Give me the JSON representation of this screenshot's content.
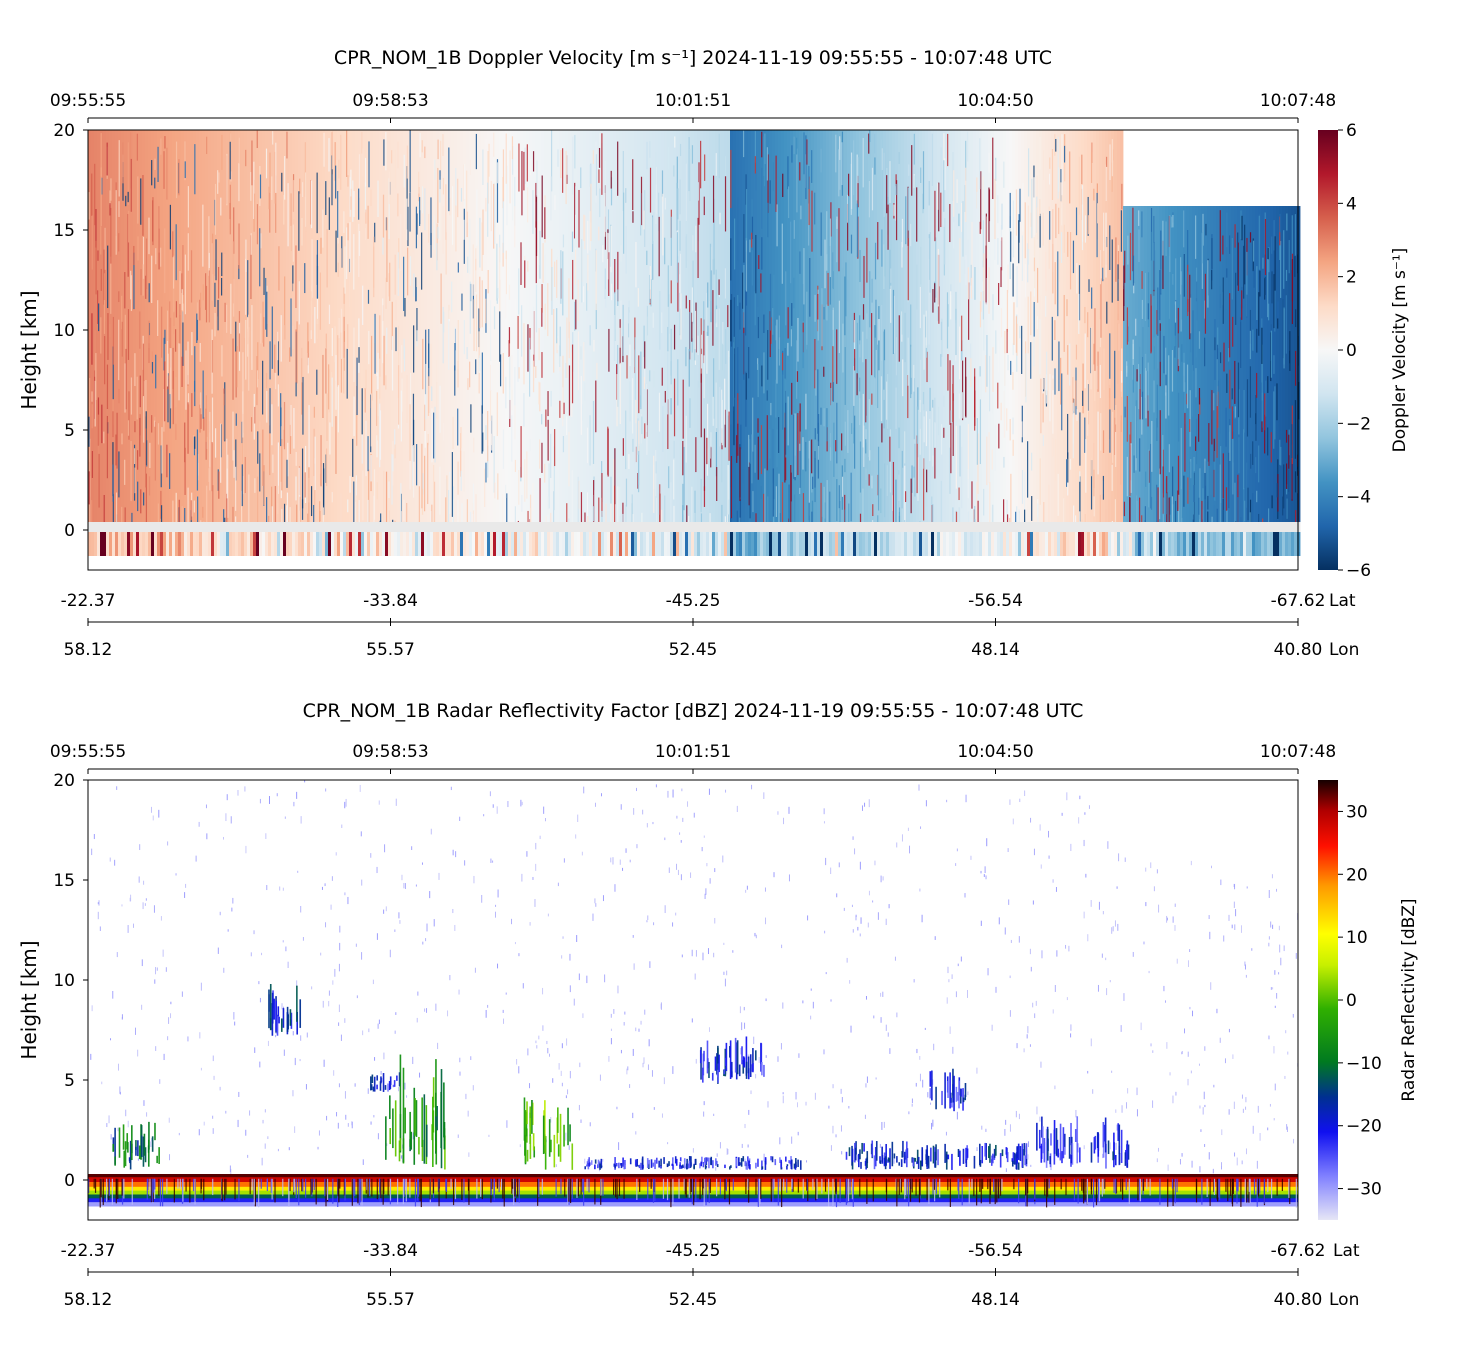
{
  "figure": {
    "panels": [
      {
        "title": "CPR_NOM_1B Doppler Velocity [m s⁻¹]    2024-11-19    09:55:55 - 10:07:48 UTC",
        "ylabel": "Height [km]",
        "colorbar_label": "Doppler Velocity [m s⁻¹]"
      },
      {
        "title": "CPR_NOM_1B Radar Reflectivity Factor [dBZ]    2024-11-19    09:55:55 - 10:07:48 UTC",
        "ylabel": "Height [km]",
        "colorbar_label": "Radar Reflectivity [dBZ]"
      }
    ]
  },
  "chart_data": [
    {
      "type": "heatmap",
      "title": "CPR_NOM_1B Doppler Velocity [m s^-1]    2024-11-19    09:55:55 - 10:07:48 UTC",
      "variable": "Doppler Velocity",
      "units": "m s^-1",
      "ylabel": "Height [km]",
      "ylim": [
        -2,
        20
      ],
      "yticks": [
        "0",
        "5",
        "10",
        "15",
        "20"
      ],
      "xlim_time": [
        "09:55:55",
        "10:07:48"
      ],
      "time_ticks": [
        "09:55:55",
        "09:58:53",
        "10:01:51",
        "10:04:50",
        "10:07:48"
      ],
      "lat_ticks": [
        "-22.37",
        "-33.84",
        "-45.25",
        "-56.54",
        "-67.62"
      ],
      "lon_ticks": [
        "58.12",
        "55.57",
        "52.45",
        "48.14",
        "40.80"
      ],
      "lat_label": "Lat",
      "lon_label": "Lon",
      "colorbar": {
        "min": -6,
        "max": 6,
        "ticks": [
          "−6",
          "−4",
          "−2",
          "0",
          "2",
          "4",
          "6"
        ],
        "label": "Doppler Velocity [m s^-1]",
        "colormap": "RdBu_r"
      },
      "segments": [
        {
          "t_start": 0.0,
          "t_end": 0.53,
          "top_km": 20,
          "v_start": 3.0,
          "v_end": -1.6
        },
        {
          "t_start": 0.53,
          "t_end": 0.853,
          "top_km": 20,
          "v_start": -4.5,
          "v_end": 1.8
        },
        {
          "t_start": 0.853,
          "t_end": 1.0,
          "top_km": 16.2,
          "v_start": -3.0,
          "v_end": -5.2
        }
      ],
      "surface_band_km": [
        -1.3,
        0.4
      ]
    },
    {
      "type": "heatmap",
      "title": "CPR_NOM_1B Radar Reflectivity Factor [dBZ]    2024-11-19    09:55:55 - 10:07:48 UTC",
      "variable": "Radar Reflectivity Factor",
      "units": "dBZ",
      "ylabel": "Height [km]",
      "ylim": [
        -2,
        20
      ],
      "yticks": [
        "0",
        "5",
        "10",
        "15",
        "20"
      ],
      "xlim_time": [
        "09:55:55",
        "10:07:48"
      ],
      "time_ticks": [
        "09:55:55",
        "09:58:53",
        "10:01:51",
        "10:04:50",
        "10:07:48"
      ],
      "lat_ticks": [
        "-22.37",
        "-33.84",
        "-45.25",
        "-56.54",
        "-67.62"
      ],
      "lon_ticks": [
        "58.12",
        "55.57",
        "52.45",
        "48.14",
        "40.80"
      ],
      "lat_label": "Lat",
      "lon_label": "Lon",
      "colorbar": {
        "min": -35,
        "max": 35,
        "ticks": [
          "−30",
          "−20",
          "−10",
          "0",
          "10",
          "20",
          "30"
        ],
        "label": "Radar Reflectivity [dBZ]"
      },
      "cloud_features": [
        {
          "t": 0.16,
          "t_width": 0.03,
          "bottom_km": 7.2,
          "top_km": 10.0,
          "dbz": -22
        },
        {
          "t": 0.245,
          "t_width": 0.025,
          "bottom_km": 4.4,
          "top_km": 5.4,
          "dbz": -24
        },
        {
          "t": 0.27,
          "t_width": 0.05,
          "bottom_km": 0.5,
          "top_km": 6.3,
          "dbz": -8
        },
        {
          "t": 0.38,
          "t_width": 0.04,
          "bottom_km": 0.5,
          "top_km": 4.2,
          "dbz": -4
        },
        {
          "t": 0.5,
          "t_width": 0.18,
          "bottom_km": 0.5,
          "top_km": 1.2,
          "dbz": -24
        },
        {
          "t": 0.52,
          "t_width": 0.03,
          "bottom_km": 4.8,
          "top_km": 7.0,
          "dbz": -22
        },
        {
          "t": 0.545,
          "t_width": 0.03,
          "bottom_km": 5.0,
          "top_km": 7.2,
          "dbz": -24
        },
        {
          "t": 0.71,
          "t_width": 0.03,
          "bottom_km": 3.4,
          "top_km": 5.6,
          "dbz": -24
        },
        {
          "t": 0.7,
          "t_width": 0.15,
          "bottom_km": 0.5,
          "top_km": 2.0,
          "dbz": -22
        },
        {
          "t": 0.82,
          "t_width": 0.08,
          "bottom_km": 0.5,
          "top_km": 3.2,
          "dbz": -24
        },
        {
          "t": 0.04,
          "t_width": 0.04,
          "bottom_km": 0.5,
          "top_km": 3.0,
          "dbz": -14
        }
      ],
      "surface_band_km": [
        -1.3,
        0.3
      ]
    }
  ]
}
